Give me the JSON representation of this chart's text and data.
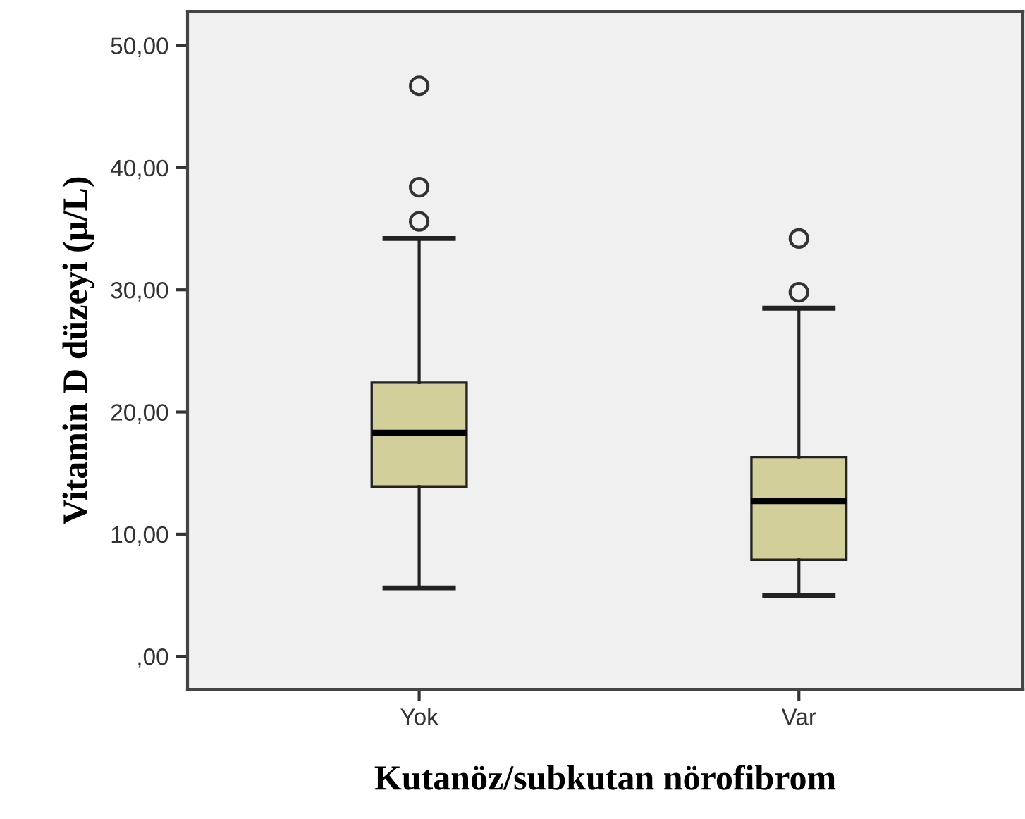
{
  "chart_data": {
    "type": "box",
    "xlabel": "Kutanöz/subkutan nörofibrom",
    "ylabel": "Vitamin D düzeyi (µ/L)",
    "categories": [
      "Yok",
      "Var"
    ],
    "boxes": [
      {
        "low": 5.6,
        "q1": 13.9,
        "median": 18.3,
        "q3": 22.4,
        "high": 34.2,
        "outliers": [
          35.6,
          38.4,
          46.7
        ]
      },
      {
        "low": 5.0,
        "q1": 7.9,
        "median": 12.7,
        "q3": 16.3,
        "high": 28.5,
        "outliers": [
          29.8,
          34.2
        ]
      }
    ],
    "color": "#d3cf9a",
    "ylim": [
      -2.7,
      52.8
    ],
    "yticks": [
      {
        "value": 0,
        "label": ",00"
      },
      {
        "value": 10,
        "label": "10,00"
      },
      {
        "value": 20,
        "label": "20,00"
      },
      {
        "value": 30,
        "label": "30,00"
      },
      {
        "value": 40,
        "label": "40,00"
      },
      {
        "value": 50,
        "label": "50,00"
      }
    ],
    "grid": false,
    "legend": false,
    "marker": "circle"
  }
}
